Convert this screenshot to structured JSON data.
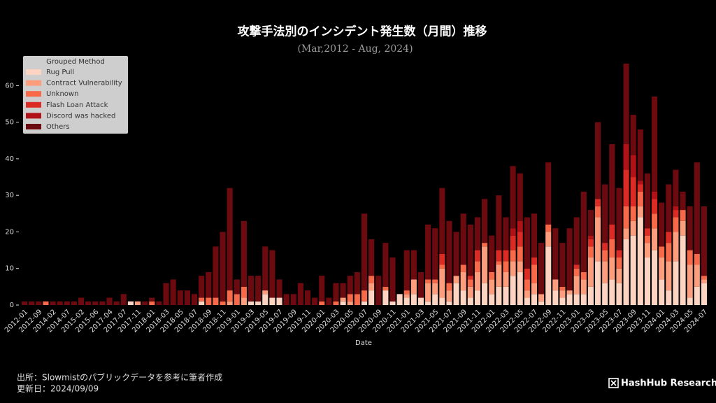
{
  "chart_data": {
    "type": "stacked_bar",
    "title": "攻撃手法別のインシデント発生数（月間）推移",
    "subtitle": "(Mar,2012 - Aug, 2024)",
    "x_label": "Date",
    "legend_title": "Grouped Method",
    "legend_position": "upper left",
    "source": "出所：Slowmistのパブリックデータを参考に筆者作成",
    "updated": "更新日：2024/09/09",
    "logo": "HashHub Research",
    "ylim": [
      0,
      66
    ],
    "yticks": [
      0,
      10,
      20,
      30,
      40,
      50,
      60
    ],
    "categories": [
      "2012-01",
      null,
      "2012-09",
      null,
      "2014-02",
      null,
      "2014-07",
      null,
      "2015-02",
      null,
      "2015-06",
      null,
      "2017-04",
      null,
      "2017-07",
      null,
      "2017-11",
      null,
      "2018-01",
      null,
      "2018-03",
      null,
      "2018-05",
      null,
      "2018-07",
      null,
      "2018-09",
      null,
      "2018-11",
      null,
      "2019-01",
      null,
      "2019-03",
      null,
      "2019-05",
      null,
      "2019-07",
      null,
      "2019-09",
      null,
      "2019-11",
      null,
      "2020-01",
      null,
      "2020-03",
      null,
      "2020-05",
      null,
      "2020-07",
      null,
      "2020-09",
      null,
      "2020-11",
      null,
      "2021-01",
      null,
      "2021-03",
      null,
      "2021-05",
      null,
      "2021-07",
      null,
      "2021-09",
      null,
      "2021-11",
      null,
      "2022-01",
      null,
      "2022-03",
      null,
      "2022-05",
      null,
      "2022-07",
      null,
      "2022-09",
      null,
      "2022-11",
      null,
      "2023-01",
      null,
      "2023-03",
      null,
      "2023-05",
      null,
      "2023-07",
      null,
      "2023-09",
      null,
      "2023-11",
      null,
      "2024-01",
      null,
      "2024-03",
      null,
      "2024-05",
      null,
      "2024-07"
    ],
    "series": [
      {
        "name": "Rug Pull",
        "color": "#fdd3c1",
        "values": [
          0,
          0,
          0,
          0,
          0,
          0,
          0,
          0,
          0,
          0,
          0,
          0,
          0,
          0,
          0,
          1,
          0,
          0,
          0,
          0,
          0,
          0,
          0,
          0,
          0,
          1,
          0,
          0,
          0,
          0,
          0,
          0,
          1,
          1,
          3,
          2,
          2,
          0,
          0,
          0,
          0,
          0,
          0,
          0,
          0,
          1,
          0,
          0,
          1,
          4,
          0,
          4,
          1,
          3,
          2,
          3,
          2,
          1,
          3,
          2,
          1,
          6,
          4,
          2,
          4,
          6,
          3,
          5,
          5,
          8,
          9,
          2,
          3,
          1,
          16,
          4,
          2,
          3,
          3,
          3,
          5,
          12,
          6,
          7,
          6,
          18,
          19,
          24,
          13,
          15,
          7,
          4,
          12,
          19,
          2,
          5,
          6
        ]
      },
      {
        "name": "Contract Vulnerability",
        "color": "#fc9d7e",
        "values": [
          0,
          0,
          0,
          0,
          0,
          0,
          0,
          0,
          0,
          0,
          0,
          0,
          0,
          0,
          0,
          0,
          1,
          0,
          0,
          0,
          0,
          0,
          0,
          0,
          0,
          0,
          0,
          0,
          0,
          1,
          0,
          2,
          0,
          0,
          1,
          0,
          0,
          0,
          0,
          0,
          0,
          0,
          0,
          0,
          0,
          1,
          1,
          0,
          0,
          2,
          0,
          0,
          0,
          0,
          1,
          4,
          0,
          5,
          3,
          8,
          3,
          2,
          5,
          3,
          5,
          10,
          4,
          6,
          4,
          4,
          3,
          2,
          3,
          2,
          4,
          3,
          2,
          1,
          5,
          4,
          8,
          12,
          6,
          6,
          4,
          3,
          4,
          3,
          4,
          6,
          6,
          8,
          8,
          4,
          9,
          6,
          1
        ]
      },
      {
        "name": "Unknown",
        "color": "#f8694a",
        "values": [
          0,
          0,
          0,
          1,
          0,
          0,
          0,
          0,
          0,
          0,
          0,
          0,
          0,
          0,
          0,
          0,
          0,
          0,
          1,
          0,
          0,
          0,
          0,
          0,
          0,
          1,
          2,
          2,
          1,
          3,
          3,
          3,
          0,
          0,
          0,
          0,
          0,
          0,
          0,
          0,
          0,
          0,
          1,
          0,
          1,
          0,
          2,
          3,
          3,
          2,
          0,
          1,
          0,
          0,
          1,
          0,
          0,
          1,
          1,
          1,
          2,
          0,
          2,
          2,
          3,
          1,
          2,
          1,
          3,
          3,
          4,
          3,
          5,
          0,
          2,
          0,
          1,
          0,
          2,
          2,
          3,
          3,
          3,
          5,
          3,
          6,
          4,
          4,
          2,
          4,
          3,
          5,
          4,
          3,
          4,
          3,
          1
        ]
      },
      {
        "name": "Flash Loan Attack",
        "color": "#dc2b25",
        "values": [
          0,
          0,
          0,
          0,
          0,
          0,
          0,
          0,
          0,
          0,
          0,
          0,
          0,
          0,
          0,
          0,
          0,
          0,
          0,
          0,
          0,
          0,
          0,
          0,
          0,
          0,
          0,
          0,
          0,
          0,
          0,
          0,
          0,
          0,
          0,
          0,
          0,
          0,
          0,
          0,
          0,
          0,
          0,
          0,
          0,
          0,
          0,
          0,
          0,
          0,
          0,
          0,
          0,
          0,
          0,
          0,
          0,
          0,
          0,
          3,
          0,
          0,
          0,
          1,
          3,
          0,
          0,
          3,
          3,
          4,
          4,
          3,
          2,
          0,
          0,
          0,
          0,
          0,
          1,
          0,
          2,
          2,
          2,
          4,
          2,
          10,
          8,
          2,
          2,
          4,
          0,
          3,
          2,
          0,
          0,
          0,
          0
        ]
      },
      {
        "name": "Discord was hacked",
        "color": "#b01217",
        "values": [
          0,
          0,
          0,
          0,
          0,
          0,
          0,
          0,
          0,
          0,
          0,
          0,
          0,
          0,
          0,
          0,
          0,
          0,
          0,
          0,
          0,
          0,
          0,
          0,
          0,
          0,
          0,
          0,
          0,
          0,
          0,
          0,
          0,
          0,
          0,
          0,
          0,
          0,
          0,
          0,
          0,
          0,
          0,
          0,
          0,
          0,
          0,
          0,
          0,
          0,
          0,
          0,
          0,
          0,
          0,
          0,
          0,
          0,
          0,
          0,
          0,
          0,
          0,
          0,
          0,
          0,
          0,
          0,
          0,
          2,
          3,
          0,
          0,
          0,
          0,
          0,
          0,
          0,
          0,
          0,
          1,
          0,
          0,
          0,
          0,
          7,
          6,
          1,
          0,
          2,
          0,
          0,
          1,
          0,
          0,
          0,
          0
        ]
      },
      {
        "name": "Others",
        "color": "#6d0a10",
        "values": [
          1,
          1,
          1,
          0,
          1,
          1,
          1,
          1,
          2,
          1,
          1,
          1,
          2,
          1,
          3,
          0,
          0,
          1,
          1,
          1,
          6,
          7,
          4,
          4,
          3,
          6,
          7,
          14,
          19,
          28,
          4,
          18,
          7,
          7,
          12,
          13,
          5,
          3,
          3,
          6,
          4,
          2,
          7,
          2,
          5,
          4,
          5,
          6,
          21,
          10,
          8,
          12,
          12,
          0,
          11,
          8,
          7,
          15,
          14,
          18,
          17,
          12,
          14,
          14,
          9,
          12,
          10,
          15,
          9,
          17,
          13,
          14,
          12,
          14,
          17,
          14,
          12,
          17,
          13,
          22,
          7,
          21,
          16,
          22,
          17,
          22,
          11,
          14,
          15,
          26,
          12,
          13,
          10,
          5,
          12,
          25,
          19
        ]
      }
    ]
  }
}
